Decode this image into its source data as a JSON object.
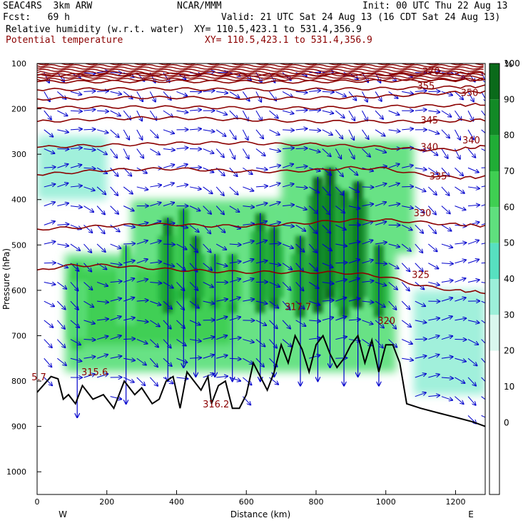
{
  "header": {
    "model": "SEAC4RS  3km ARW",
    "center": "NCAR/MMM",
    "init": "Init: 00 UTC Thu 22 Aug 13",
    "fcst": "Fcst:   69 h",
    "valid": "Valid: 21 UTC Sat 24 Aug 13 (16 CDT Sat 24 Aug 13)",
    "field1_name": "Relative humidity (w.r.t. water)",
    "field1_xy": "XY= 110.5,423.1 to 531.4,356.9",
    "field2_name": "Potential temperature",
    "field2_xy": "XY= 110.5,423.1 to 531.4,356.9"
  },
  "colors": {
    "theta": "#8b0000",
    "wind": "#0000cc",
    "terrain": "#000000",
    "rh_scale": [
      "#ffffff",
      "#ffffff",
      "#ffffff",
      "#ffffff",
      "#d9f7ee",
      "#9cefd9",
      "#57e0c0",
      "#5fe07e",
      "#3fcf52",
      "#20ad36",
      "#128a26",
      "#0a6a1a"
    ]
  },
  "chart_data": {
    "type": "heatmap",
    "ylabel": "Pressure (hPa)",
    "xlabel": "Distance (km)",
    "x_ticks": [
      "0",
      "200",
      "400",
      "600",
      "800",
      "1000",
      "1200"
    ],
    "x_tick_values": [
      0,
      200,
      400,
      600,
      800,
      1000,
      1200
    ],
    "y_ticks": [
      "100",
      "200",
      "300",
      "400",
      "500",
      "600",
      "700",
      "800",
      "900",
      "1000"
    ],
    "y_tick_values": [
      100,
      200,
      300,
      400,
      500,
      600,
      700,
      800,
      900,
      1000
    ],
    "xlim": [
      0,
      1285
    ],
    "ylim": [
      1050,
      100
    ],
    "direction_labels": {
      "left": "W",
      "right": "E"
    },
    "colorbar": {
      "unit": "%",
      "levels": [
        -10,
        0,
        10,
        20,
        30,
        40,
        50,
        60,
        70,
        80,
        90,
        100,
        110
      ],
      "tick_labels": [
        "0",
        "10",
        "20",
        "30",
        "40",
        "50",
        "60",
        "70",
        "80",
        "90",
        "100"
      ]
    },
    "theta_contour_labels": [
      {
        "text": "370",
        "x": 1130,
        "p": 118
      },
      {
        "text": "355",
        "x": 1115,
        "p": 150
      },
      {
        "text": "350",
        "x": 1240,
        "p": 165
      },
      {
        "text": "345",
        "x": 1125,
        "p": 226
      },
      {
        "text": "340",
        "x": 1125,
        "p": 285
      },
      {
        "text": "340",
        "x": 1245,
        "p": 270
      },
      {
        "text": "335",
        "x": 1150,
        "p": 349
      },
      {
        "text": "330",
        "x": 1105,
        "p": 430
      },
      {
        "text": "325",
        "x": 1100,
        "p": 566
      },
      {
        "text": "320",
        "x": 1002,
        "p": 668
      },
      {
        "text": "317.7",
        "x": 748,
        "p": 637
      },
      {
        "text": "315.6",
        "x": 165,
        "p": 781
      },
      {
        "text": "316.2",
        "x": 513,
        "p": 852
      },
      {
        "text": "5.7",
        "x": 5,
        "p": 792
      }
    ],
    "theta_isentropes": [
      {
        "theta": 325,
        "p": [
          555,
          545,
          545,
          550,
          555,
          558,
          560,
          560,
          560,
          562,
          570,
          590,
          600,
          605
        ]
      },
      {
        "theta": 330,
        "p": [
          465,
          462,
          458,
          455,
          455,
          458,
          458,
          455,
          450,
          445,
          445,
          450,
          455,
          458
        ]
      },
      {
        "theta": 335,
        "p": [
          345,
          340,
          335,
          333,
          332,
          335,
          338,
          338,
          335,
          330,
          332,
          345,
          352,
          350
        ]
      },
      {
        "theta": 340,
        "p": [
          285,
          282,
          280,
          278,
          276,
          275,
          275,
          278,
          278,
          282,
          285,
          290,
          290,
          282
        ]
      },
      {
        "theta": 345,
        "p": [
          228,
          225,
          222,
          220,
          220,
          222,
          224,
          226,
          228,
          228,
          228,
          228,
          226,
          224
        ]
      },
      {
        "theta": 350,
        "p": [
          198,
          197,
          196,
          196,
          196,
          197,
          198,
          198,
          198,
          196,
          195,
          194,
          192,
          190
        ]
      },
      {
        "theta": 355,
        "p": [
          178,
          177,
          176,
          175,
          175,
          176,
          176,
          177,
          176,
          175,
          172,
          168,
          164,
          162
        ]
      },
      {
        "theta": 360,
        "p": [
          158,
          157,
          156,
          156,
          156,
          157,
          157,
          158,
          157,
          156,
          155,
          154,
          152,
          150
        ]
      },
      {
        "theta": 365,
        "p": [
          140,
          140,
          140,
          139,
          139,
          140,
          140,
          141,
          140,
          139,
          138,
          138,
          137,
          136
        ]
      },
      {
        "theta": 370,
        "p": [
          126,
          125,
          125,
          124,
          124,
          125,
          125,
          126,
          125,
          124,
          124,
          123,
          122,
          121
        ]
      }
    ],
    "theta_isentrope_x": [
      0,
      100,
      200,
      300,
      400,
      500,
      600,
      700,
      800,
      900,
      1000,
      1100,
      1200,
      1285
    ],
    "terrain_surface": {
      "x": [
        0,
        40,
        60,
        75,
        90,
        110,
        130,
        160,
        190,
        220,
        250,
        280,
        300,
        330,
        350,
        370,
        390,
        410,
        430,
        450,
        470,
        490,
        500,
        520,
        540,
        560,
        580,
        600,
        620,
        640,
        660,
        680,
        700,
        720,
        740,
        760,
        780,
        800,
        820,
        840,
        860,
        880,
        900,
        920,
        940,
        960,
        980,
        1000,
        1020,
        1040,
        1060,
        1100,
        1150,
        1200,
        1250,
        1285
      ],
      "p": [
        825,
        790,
        795,
        840,
        830,
        850,
        810,
        840,
        830,
        860,
        800,
        830,
        815,
        850,
        840,
        800,
        790,
        860,
        780,
        800,
        820,
        790,
        850,
        810,
        800,
        860,
        860,
        830,
        760,
        790,
        820,
        780,
        720,
        760,
        700,
        730,
        780,
        720,
        700,
        740,
        770,
        750,
        720,
        700,
        760,
        710,
        780,
        720,
        720,
        760,
        850,
        860,
        870,
        880,
        890,
        900
      ]
    },
    "rh_columns": [
      {
        "x": 115,
        "ptop": 540,
        "pbot": 730,
        "rh": 70
      },
      {
        "x": 255,
        "ptop": 500,
        "pbot": 700,
        "rh": 70
      },
      {
        "x": 375,
        "ptop": 440,
        "pbot": 650,
        "rh": 90
      },
      {
        "x": 420,
        "ptop": 420,
        "pbot": 620,
        "rh": 80
      },
      {
        "x": 455,
        "ptop": 480,
        "pbot": 640,
        "rh": 90
      },
      {
        "x": 510,
        "ptop": 520,
        "pbot": 640,
        "rh": 80
      },
      {
        "x": 560,
        "ptop": 520,
        "pbot": 650,
        "rh": 80
      },
      {
        "x": 640,
        "ptop": 430,
        "pbot": 650,
        "rh": 90
      },
      {
        "x": 680,
        "ptop": 460,
        "pbot": 640,
        "rh": 90
      },
      {
        "x": 755,
        "ptop": 480,
        "pbot": 660,
        "rh": 90
      },
      {
        "x": 805,
        "ptop": 350,
        "pbot": 650,
        "rh": 100
      },
      {
        "x": 840,
        "ptop": 330,
        "pbot": 620,
        "rh": 100
      },
      {
        "x": 880,
        "ptop": 380,
        "pbot": 660,
        "rh": 90
      },
      {
        "x": 920,
        "ptop": 360,
        "pbot": 640,
        "rh": 100
      },
      {
        "x": 980,
        "ptop": 500,
        "pbot": 660,
        "rh": 90
      }
    ],
    "rh_layers": [
      {
        "p_top": 520,
        "p_bot": 780,
        "x0": 80,
        "x1": 1030,
        "rh": 60
      },
      {
        "p_top": 550,
        "p_bot": 720,
        "x0": 90,
        "x1": 560,
        "rh": 70
      },
      {
        "p_top": 270,
        "p_bot": 520,
        "x0": 700,
        "x1": 1080,
        "rh": 60
      },
      {
        "p_top": 400,
        "p_bot": 520,
        "x0": 270,
        "x1": 700,
        "rh": 60
      },
      {
        "p_top": 600,
        "p_bot": 830,
        "x0": 1080,
        "x1": 1285,
        "rh": 40
      },
      {
        "p_top": 260,
        "p_bot": 400,
        "x0": 0,
        "x1": 200,
        "rh": 40
      }
    ]
  }
}
